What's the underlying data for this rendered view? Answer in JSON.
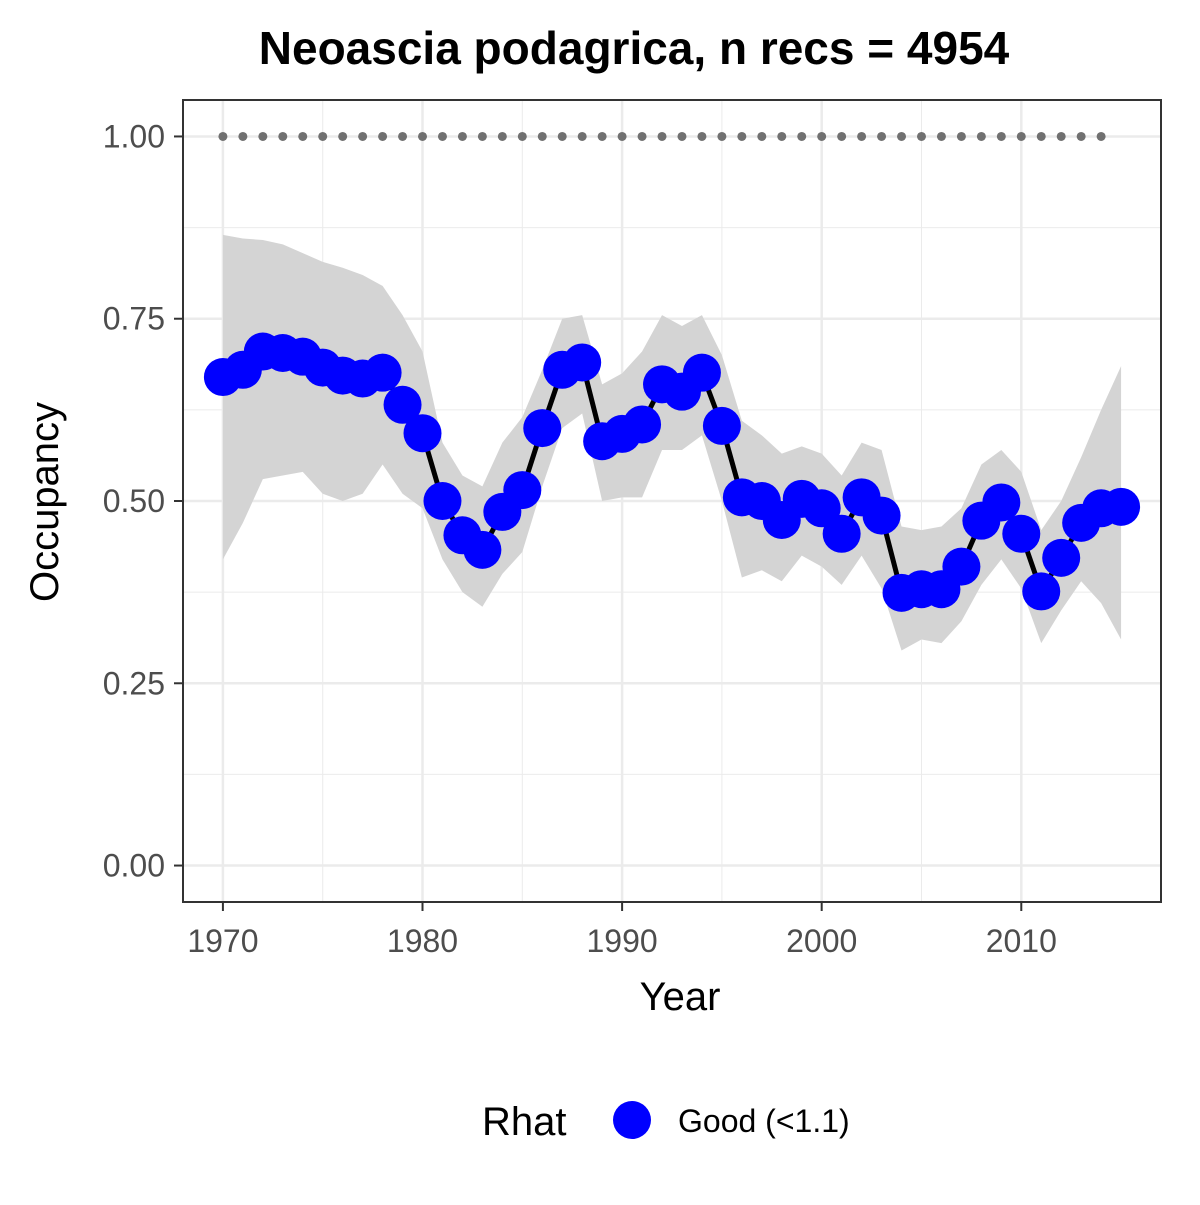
{
  "chart_data": {
    "type": "line",
    "title": "Neoascia podagrica, n recs = 4954",
    "xlabel": "Year",
    "ylabel": "Occupancy",
    "xlim": [
      1968,
      2017
    ],
    "ylim": [
      -0.05,
      1.05
    ],
    "xticks": [
      1970,
      1980,
      1990,
      2000,
      2010
    ],
    "xtick_labels": [
      "1970",
      "1980",
      "1990",
      "2000",
      "2010"
    ],
    "yticks": [
      0,
      0.25,
      0.5,
      0.75,
      1.0
    ],
    "ytick_labels": [
      "0.00",
      "0.25",
      "0.50",
      "0.75",
      "1.00"
    ],
    "grid": true,
    "legend": {
      "position": "bottom",
      "title": "Rhat",
      "entries": [
        {
          "label": "Good (<1.1)",
          "color": "#0000ff"
        }
      ]
    },
    "colors": {
      "points": "#0000ff",
      "line": "#000000",
      "ribbon": "#d4d4d4",
      "dotted": "#707070",
      "panel_border": "#333333",
      "grid": "#ebebeb",
      "tick_text": "#4d4d4d"
    },
    "x": [
      1970,
      1971,
      1972,
      1973,
      1974,
      1975,
      1976,
      1977,
      1978,
      1979,
      1980,
      1981,
      1982,
      1983,
      1984,
      1985,
      1986,
      1987,
      1988,
      1989,
      1990,
      1991,
      1992,
      1993,
      1994,
      1995,
      1996,
      1997,
      1998,
      1999,
      2000,
      2001,
      2002,
      2003,
      2004,
      2005,
      2006,
      2007,
      2008,
      2009,
      2010,
      2011,
      2012,
      2013,
      2014,
      2015
    ],
    "series": [
      {
        "values": [
          0.67,
          0.68,
          0.705,
          0.703,
          0.698,
          0.683,
          0.672,
          0.668,
          0.676,
          0.632,
          0.593,
          0.5,
          0.453,
          0.433,
          0.485,
          0.515,
          0.6,
          0.68,
          0.69,
          0.582,
          0.592,
          0.605,
          0.66,
          0.65,
          0.676,
          0.603,
          0.505,
          0.5,
          0.474,
          0.503,
          0.49,
          0.455,
          0.505,
          0.48,
          0.374,
          0.379,
          0.379,
          0.41,
          0.473,
          0.498,
          0.455,
          0.376,
          0.422,
          0.47,
          0.49,
          0.492
        ],
        "lower": [
          0.42,
          0.47,
          0.53,
          0.535,
          0.54,
          0.51,
          0.5,
          0.51,
          0.55,
          0.51,
          0.49,
          0.42,
          0.375,
          0.355,
          0.4,
          0.43,
          0.52,
          0.6,
          0.62,
          0.5,
          0.505,
          0.505,
          0.57,
          0.57,
          0.59,
          0.5,
          0.395,
          0.405,
          0.39,
          0.425,
          0.41,
          0.385,
          0.425,
          0.38,
          0.295,
          0.31,
          0.305,
          0.335,
          0.385,
          0.42,
          0.38,
          0.305,
          0.35,
          0.39,
          0.36,
          0.31
        ],
        "upper": [
          0.865,
          0.86,
          0.858,
          0.852,
          0.84,
          0.828,
          0.82,
          0.81,
          0.795,
          0.755,
          0.705,
          0.58,
          0.535,
          0.52,
          0.58,
          0.615,
          0.68,
          0.75,
          0.755,
          0.66,
          0.675,
          0.705,
          0.755,
          0.74,
          0.755,
          0.7,
          0.61,
          0.59,
          0.565,
          0.575,
          0.565,
          0.535,
          0.58,
          0.57,
          0.465,
          0.46,
          0.465,
          0.49,
          0.55,
          0.57,
          0.54,
          0.46,
          0.5,
          0.56,
          0.625,
          0.685
        ]
      }
    ],
    "reference": {
      "values": [
        1,
        1,
        1,
        1,
        1,
        1,
        1,
        1,
        1,
        1,
        1,
        1,
        1,
        1,
        1,
        1,
        1,
        1,
        1,
        1,
        1,
        1,
        1,
        1,
        1,
        1,
        1,
        1,
        1,
        1,
        1,
        1,
        1,
        1,
        1,
        1,
        1,
        1,
        1,
        1,
        1,
        1,
        1,
        1,
        1
      ]
    }
  }
}
